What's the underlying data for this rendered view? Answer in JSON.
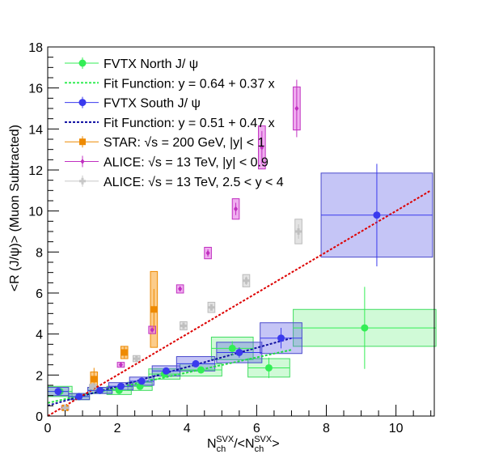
{
  "chart_data": {
    "type": "scatter",
    "title": "",
    "xlabel": "N_ch^SVX/<N_ch^SVX>",
    "xlabel_parts": {
      "n": "N",
      "ch": "ch",
      "svx": "SVX",
      "slash": "/<",
      "close": ">"
    },
    "ylabel": "<R (J/ψ)> (Muon Subtracted)",
    "xlim": [
      0,
      11.1
    ],
    "ylim": [
      0,
      18
    ],
    "x_ticks": [
      "0",
      "2",
      "4",
      "6",
      "8",
      "10"
    ],
    "y_ticks": [
      "0",
      "2",
      "4",
      "6",
      "8",
      "10",
      "12",
      "14",
      "16",
      "18"
    ],
    "grid": false,
    "legend_position": "top-left",
    "legend": [
      {
        "text": "FVTX North J/ ψ",
        "style": "marker",
        "color": "#33ee55"
      },
      {
        "text": "Fit Function: y = 0.64 + 0.37 x",
        "style": "dashed",
        "color": "#33ee55"
      },
      {
        "text": "FVTX South J/ ψ",
        "style": "marker",
        "color": "#3a3aee"
      },
      {
        "text": "Fit Function: y = 0.51 + 0.47 x",
        "style": "dashed",
        "color": "#0a0aa0"
      },
      {
        "text": "STAR:  √s = 200 GeV, |y| < 1",
        "style": "square",
        "color": "#ee8a00"
      },
      {
        "text": "ALICE:  √s = 13 TeV, |y| < 0.9",
        "style": "diamond",
        "color": "#c030c0"
      },
      {
        "text": "ALICE:  √s = 13 TeV, 2.5 < y < 4",
        "style": "cross",
        "color": "#c8c8c8"
      }
    ],
    "fits": [
      {
        "name": "Fit Function: y = 0.64 + 0.37 x",
        "intercept": 0.64,
        "slope": 0.37,
        "x_range": [
          0,
          7.0
        ],
        "color": "#22dd44"
      },
      {
        "name": "Fit Function: y = 0.51 + 0.47 x",
        "intercept": 0.51,
        "slope": 0.47,
        "x_range": [
          0,
          7.0
        ],
        "color": "#1010a0"
      },
      {
        "intercept": 0.0,
        "slope": 1.0,
        "x_range": [
          0,
          11.0
        ],
        "color": "#dd0000"
      }
    ],
    "series": [
      {
        "name": "FVTX North J/ ψ",
        "marker": "circle",
        "color": "#33ee55",
        "box_fill": "rgba(120,240,140,0.35)",
        "box_stroke": "#40dd60",
        "points": [
          {
            "x": 0.35,
            "y": 1.2,
            "xerr": 0.35,
            "yerr": 0.05,
            "sys": 0.25
          },
          {
            "x": 0.9,
            "y": 0.95,
            "xerr": 0.3,
            "yerr": 0.05,
            "sys": 0.15
          },
          {
            "x": 1.5,
            "y": 1.25,
            "xerr": 0.35,
            "yerr": 0.05,
            "sys": 0.15
          },
          {
            "x": 2.05,
            "y": 1.25,
            "xerr": 0.35,
            "yerr": 0.06,
            "sys": 0.2
          },
          {
            "x": 2.65,
            "y": 1.45,
            "xerr": 0.35,
            "yerr": 0.07,
            "sys": 0.2
          },
          {
            "x": 3.35,
            "y": 2.05,
            "xerr": 0.45,
            "yerr": 0.1,
            "sys": 0.25
          },
          {
            "x": 4.4,
            "y": 2.25,
            "xerr": 0.6,
            "yerr": 0.15,
            "sys": 0.3
          },
          {
            "x": 5.3,
            "y": 3.3,
            "xerr": 0.6,
            "yerr": 0.35,
            "sys": 0.55
          },
          {
            "x": 6.35,
            "y": 2.35,
            "xerr": 0.6,
            "yerr": 0.5,
            "sys": 0.45
          },
          {
            "x": 9.1,
            "y": 4.3,
            "xerr": 2.05,
            "yerr": 2.0,
            "sys": 0.9
          }
        ]
      },
      {
        "name": "FVTX South J/ ψ",
        "marker": "circle",
        "color": "#3a3aee",
        "box_fill": "rgba(90,90,230,0.35)",
        "box_stroke": "#4a4acc",
        "points": [
          {
            "x": 0.3,
            "y": 1.2,
            "xerr": 0.3,
            "yerr": 0.05,
            "sys": 0.2
          },
          {
            "x": 0.9,
            "y": 0.95,
            "xerr": 0.3,
            "yerr": 0.05,
            "sys": 0.15
          },
          {
            "x": 1.5,
            "y": 1.25,
            "xerr": 0.35,
            "yerr": 0.05,
            "sys": 0.15
          },
          {
            "x": 2.1,
            "y": 1.45,
            "xerr": 0.35,
            "yerr": 0.06,
            "sys": 0.18
          },
          {
            "x": 2.7,
            "y": 1.7,
            "xerr": 0.35,
            "yerr": 0.07,
            "sys": 0.2
          },
          {
            "x": 3.4,
            "y": 2.2,
            "xerr": 0.4,
            "yerr": 0.1,
            "sys": 0.25
          },
          {
            "x": 4.25,
            "y": 2.55,
            "xerr": 0.55,
            "yerr": 0.12,
            "sys": 0.35
          },
          {
            "x": 5.5,
            "y": 3.1,
            "xerr": 0.65,
            "yerr": 0.25,
            "sys": 0.5
          },
          {
            "x": 6.7,
            "y": 3.8,
            "xerr": 0.6,
            "yerr": 0.5,
            "sys": 0.75
          },
          {
            "x": 9.45,
            "y": 9.8,
            "xerr": 1.6,
            "yerr": 2.5,
            "sys": 2.05
          }
        ]
      },
      {
        "name": "STAR:  √s = 200 GeV, |y| < 1",
        "marker": "square",
        "color": "#ee8a00",
        "box_fill": "rgba(250,170,60,0.6)",
        "box_stroke": "#ee8a00",
        "points": [
          {
            "x": 0.5,
            "y": 0.4,
            "xerr": 0.0,
            "yerr": 0.08,
            "sys": 0.1
          },
          {
            "x": 1.33,
            "y": 1.8,
            "xerr": 0.0,
            "yerr": 0.55,
            "sys": 0.35
          },
          {
            "x": 2.2,
            "y": 3.1,
            "xerr": 0.0,
            "yerr": 0.3,
            "sys": 0.3
          },
          {
            "x": 3.05,
            "y": 5.2,
            "xerr": 0.0,
            "yerr": 1.0,
            "sys": 1.85
          }
        ]
      },
      {
        "name": "ALICE:  √s = 13 TeV, |y| < 0.9",
        "marker": "diamond",
        "color": "#c030c0",
        "box_fill": "rgba(230,120,230,0.6)",
        "box_stroke": "#c030c0",
        "points": [
          {
            "x": 0.5,
            "y": 0.4,
            "xerr": 0.0,
            "yerr": 0.08,
            "sys": 0.1
          },
          {
            "x": 2.1,
            "y": 2.5,
            "xerr": 0.0,
            "yerr": 0.05,
            "sys": 0.12
          },
          {
            "x": 3.0,
            "y": 4.2,
            "xerr": 0.0,
            "yerr": 0.1,
            "sys": 0.18
          },
          {
            "x": 3.8,
            "y": 6.2,
            "xerr": 0.0,
            "yerr": 0.12,
            "sys": 0.2
          },
          {
            "x": 4.6,
            "y": 7.95,
            "xerr": 0.0,
            "yerr": 0.18,
            "sys": 0.28
          },
          {
            "x": 5.4,
            "y": 10.1,
            "xerr": 0.0,
            "yerr": 0.3,
            "sys": 0.5
          },
          {
            "x": 6.15,
            "y": 13.1,
            "xerr": 0.0,
            "yerr": 0.8,
            "sys": 1.05
          },
          {
            "x": 7.15,
            "y": 15.0,
            "xerr": 0.0,
            "yerr": 1.4,
            "sys": 1.05
          }
        ]
      },
      {
        "name": "ALICE:  √s = 13 TeV, 2.5 < y < 4",
        "marker": "cross",
        "color": "#c0c0c0",
        "box_fill": "rgba(215,215,215,0.7)",
        "box_stroke": "#bbbbbb",
        "points": [
          {
            "x": 0.5,
            "y": 0.4,
            "xerr": 0.0,
            "yerr": 0.05,
            "sys": 0.08
          },
          {
            "x": 1.3,
            "y": 1.45,
            "xerr": 0.0,
            "yerr": 0.06,
            "sys": 0.1
          },
          {
            "x": 2.55,
            "y": 2.8,
            "xerr": 0.0,
            "yerr": 0.08,
            "sys": 0.15
          },
          {
            "x": 3.9,
            "y": 4.4,
            "xerr": 0.0,
            "yerr": 0.1,
            "sys": 0.2
          },
          {
            "x": 4.7,
            "y": 5.3,
            "xerr": 0.0,
            "yerr": 0.15,
            "sys": 0.25
          },
          {
            "x": 5.7,
            "y": 6.6,
            "xerr": 0.0,
            "yerr": 0.2,
            "sys": 0.3
          },
          {
            "x": 7.2,
            "y": 9.0,
            "xerr": 0.0,
            "yerr": 0.35,
            "sys": 0.6
          }
        ]
      }
    ]
  }
}
